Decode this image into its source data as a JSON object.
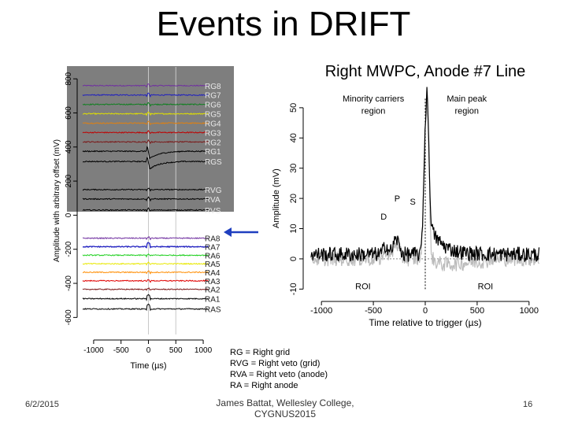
{
  "slide": {
    "title": "Events in DRIFT",
    "right_caption": "Right MWPC, Anode #7 Line",
    "date": "6/2/2015",
    "author": "James Battat, Wellesley College, CYGNUS2015",
    "page": "16",
    "legend": [
      "RG = Right grid",
      "RVG = Right veto (grid)",
      "RVA = Right veto (anode)",
      "RA = Right anode"
    ]
  },
  "chart_data": [
    {
      "type": "line",
      "name": "stacked-waveforms",
      "xlabel": "Time (µs)",
      "ylabel": "Amplitude with arbitrary offset (mV)",
      "xlim": [
        -1200,
        1100
      ],
      "ylim": [
        -700,
        870
      ],
      "x_ticks": [
        -1000,
        -500,
        0,
        500,
        1000
      ],
      "y_ticks": [
        800,
        600,
        400,
        200,
        0,
        -200,
        -400,
        -600
      ],
      "highlighted_channel": "RA7",
      "channels": [
        {
          "name": "RG8",
          "offset": 760,
          "color": "#7030a0"
        },
        {
          "name": "RG7",
          "offset": 705,
          "color": "#2020c0"
        },
        {
          "name": "RG6",
          "offset": 650,
          "color": "#108020"
        },
        {
          "name": "RG5",
          "offset": 595,
          "color": "#e0e000"
        },
        {
          "name": "RG4",
          "offset": 540,
          "color": "#e08010"
        },
        {
          "name": "RG3",
          "offset": 485,
          "color": "#c00000"
        },
        {
          "name": "RG2",
          "offset": 430,
          "color": "#7b1a1a"
        },
        {
          "name": "RG1",
          "offset": 375,
          "color": "#000000"
        },
        {
          "name": "RGS",
          "offset": 315,
          "color": "#000000"
        },
        {
          "name": "RVG",
          "offset": 150,
          "color": "#000000"
        },
        {
          "name": "RVA",
          "offset": 95,
          "color": "#000000"
        },
        {
          "name": "RVS",
          "offset": 30,
          "color": "#000000"
        },
        {
          "name": "RA8",
          "offset": -135,
          "color": "#7030a0"
        },
        {
          "name": "RA7",
          "offset": -185,
          "color": "#2020c0"
        },
        {
          "name": "RA6",
          "offset": -235,
          "color": "#20d020"
        },
        {
          "name": "RA5",
          "offset": -285,
          "color": "#e8e800"
        },
        {
          "name": "RA4",
          "offset": -335,
          "color": "#ff8c00"
        },
        {
          "name": "RA3",
          "offset": -385,
          "color": "#e00000"
        },
        {
          "name": "RA2",
          "offset": -435,
          "color": "#7b1a1a"
        },
        {
          "name": "RA1",
          "offset": -490,
          "color": "#000000"
        },
        {
          "name": "RAS",
          "offset": -550,
          "color": "#000000"
        }
      ]
    },
    {
      "type": "line",
      "name": "anode7-zoom",
      "xlabel": "Time relative to trigger (µs)",
      "ylabel": "Amplitude (mV)",
      "xlim": [
        -1100,
        1100
      ],
      "ylim": [
        -12,
        57
      ],
      "x_ticks": [
        -1000,
        -500,
        0,
        500,
        1000
      ],
      "y_ticks": [
        -10,
        0,
        10,
        20,
        30,
        40,
        50
      ],
      "series": [
        {
          "name": "raw",
          "color": "#bbbbbb"
        },
        {
          "name": "filtered",
          "color": "#000000"
        }
      ],
      "annotations": [
        {
          "text": "Minority carriers",
          "x": -500,
          "y": 52
        },
        {
          "text": "region",
          "x": -500,
          "y": 48
        },
        {
          "text": "Main peak",
          "x": 400,
          "y": 52
        },
        {
          "text": "region",
          "x": 400,
          "y": 48
        },
        {
          "text": "P",
          "x": -270,
          "y": 19
        },
        {
          "text": "S",
          "x": -120,
          "y": 18
        },
        {
          "text": "D",
          "x": -400,
          "y": 13
        },
        {
          "text": "ROI",
          "x": -600,
          "y": -10
        },
        {
          "text": "ROI",
          "x": 580,
          "y": -10
        }
      ],
      "trigger_line_x": 0
    }
  ]
}
